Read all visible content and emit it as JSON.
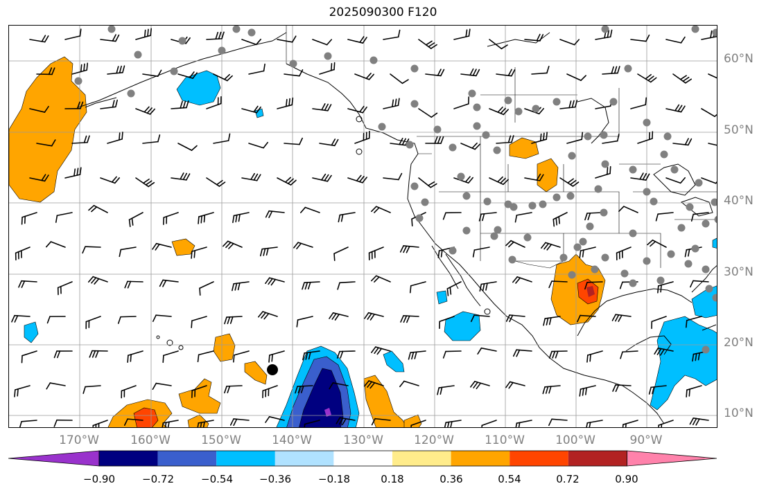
{
  "title": "2025090300 F120",
  "latitude_labels": [
    "60°N",
    "50°N",
    "40°N",
    "30°N",
    "20°N",
    "10°N"
  ],
  "longitude_labels": [
    "170°W",
    "160°W",
    "150°W",
    "140°W",
    "130°W",
    "120°W",
    "110°W",
    "100°W",
    "90°W"
  ],
  "colorbar": {
    "tick_labels": [
      "−0.90",
      "−0.72",
      "−0.54",
      "−0.36",
      "−0.18",
      "0.18",
      "0.36",
      "0.54",
      "0.72",
      "0.90"
    ],
    "colors": [
      "#9932cc",
      "#000080",
      "#3a5fcd",
      "#00bfff",
      "#b0e2ff",
      "#ffffff",
      "#ffec8b",
      "#ffa500",
      "#ff4500",
      "#b22222",
      "#ff82ab"
    ],
    "extend": "both"
  },
  "map": {
    "projection": "PlateCarree",
    "lon_range": [
      -180,
      -80
    ],
    "lat_range": [
      8,
      65
    ],
    "gridlines": true,
    "fill_colors": {
      "orange": "#ffa500",
      "light_blue": "#00bfff",
      "mid_blue": "#3a5fcd",
      "navy": "#000080",
      "red_orange": "#ff4500",
      "crimson": "#b22222",
      "purple": "#9932cc"
    },
    "station_marker_color": "#808080",
    "barb_color": "#000000"
  }
}
